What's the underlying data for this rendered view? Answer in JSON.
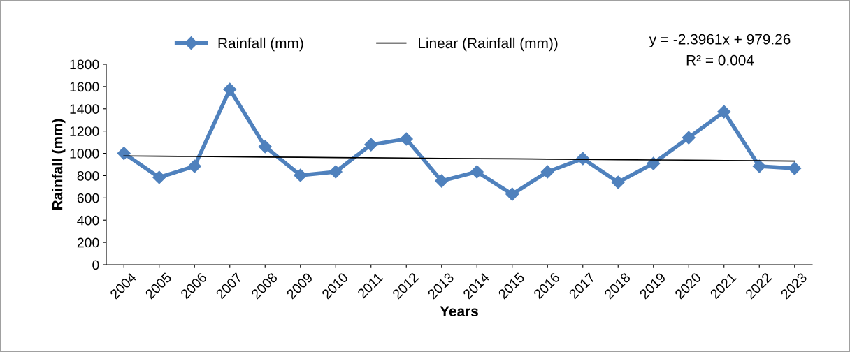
{
  "chart_data": {
    "type": "line",
    "xlabel": "Years",
    "ylabel": "Rainfall (mm)",
    "categories": [
      "2004",
      "2005",
      "2006",
      "2007",
      "2008",
      "2009",
      "2010",
      "2011",
      "2012",
      "2013",
      "2014",
      "2015",
      "2016",
      "2017",
      "2018",
      "2019",
      "2020",
      "2021",
      "2022",
      "2023"
    ],
    "series": [
      {
        "name": "Rainfall (mm)",
        "color": "#4f81bd",
        "marker": "diamond",
        "values": [
          1000,
          784,
          884,
          1574,
          1060,
          803,
          834,
          1078,
          1129,
          752,
          834,
          633,
          834,
          953,
          740,
          909,
          1141,
          1373,
          884,
          865
        ]
      },
      {
        "name": "Linear (Rainfall (mm))",
        "color": "#000000",
        "marker": "none",
        "values": [
          977,
          974,
          972,
          970,
          967,
          965,
          962,
          960,
          958,
          955,
          953,
          951,
          948,
          946,
          943,
          941,
          939,
          936,
          934,
          931
        ]
      }
    ],
    "ylim": [
      0,
      1800
    ],
    "yticks": [
      0,
      200,
      400,
      600,
      800,
      1000,
      1200,
      1400,
      1600,
      1800
    ],
    "grid": false,
    "legend": "top",
    "annotations": [
      "y = -2.3961x + 979.26",
      "R² = 0.004"
    ]
  }
}
